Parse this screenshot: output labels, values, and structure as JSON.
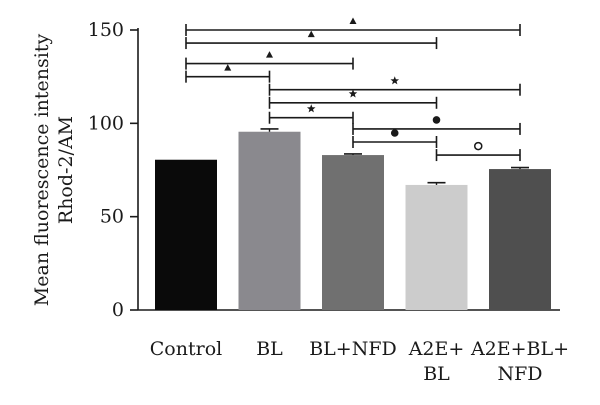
{
  "chart_data": {
    "type": "bar",
    "ylabel_line1": "Mean fluorescence intensity",
    "ylabel_line2": "Rhod-2/AM",
    "ylim": [
      0,
      150
    ],
    "yticks": [
      "0",
      "50",
      "100",
      "150"
    ],
    "grid": false,
    "categories": [
      {
        "lines": [
          "Control"
        ]
      },
      {
        "lines": [
          "BL"
        ]
      },
      {
        "lines": [
          "BL+NFD"
        ]
      },
      {
        "lines": [
          "A2E+",
          "BL"
        ]
      },
      {
        "lines": [
          "A2E+BL+",
          "NFD"
        ]
      }
    ],
    "values": [
      80.5,
      95.5,
      83,
      67,
      75.5
    ],
    "errors": [
      0,
      1.5,
      0.6,
      1.2,
      0.8
    ],
    "colors": [
      "#0a0a0a",
      "#8a898e",
      "#707070",
      "#cccccc",
      "#4f4f4f"
    ],
    "comparisons": [
      {
        "from": 0,
        "to": 4,
        "y": 150,
        "marker": "triangle",
        "marker_glyph": "▲"
      },
      {
        "from": 0,
        "to": 3,
        "y": 143,
        "marker": "triangle",
        "marker_glyph": "▲"
      },
      {
        "from": 0,
        "to": 2,
        "y": 132,
        "marker": "triangle",
        "marker_glyph": "▲"
      },
      {
        "from": 0,
        "to": 1,
        "y": 125,
        "marker": "triangle",
        "marker_glyph": "▲"
      },
      {
        "from": 1,
        "to": 4,
        "y": 118,
        "marker": "star",
        "marker_glyph": "★"
      },
      {
        "from": 1,
        "to": 3,
        "y": 111,
        "marker": "star",
        "marker_glyph": "★"
      },
      {
        "from": 1,
        "to": 2,
        "y": 103,
        "marker": "star",
        "marker_glyph": "★"
      },
      {
        "from": 2,
        "to": 4,
        "y": 97,
        "marker": "filled-circle",
        "marker_glyph": "●"
      },
      {
        "from": 2,
        "to": 3,
        "y": 90,
        "marker": "filled-circle",
        "marker_glyph": "●"
      },
      {
        "from": 3,
        "to": 4,
        "y": 83,
        "marker": "open-circle",
        "marker_glyph": "○"
      }
    ]
  }
}
